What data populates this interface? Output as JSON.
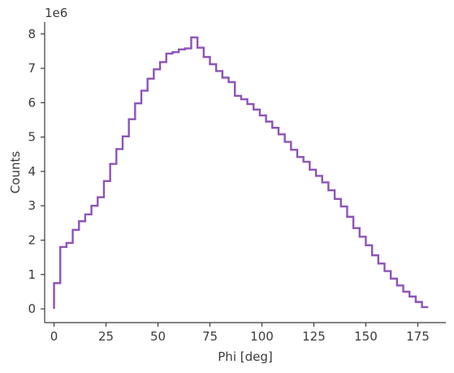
{
  "chart_data": {
    "type": "line",
    "style": "step-histogram",
    "title": "",
    "xlabel": "Phi [deg]",
    "ylabel": "Counts",
    "y_offset_label": "1e6",
    "xlim": [
      -4.5,
      188.5
    ],
    "ylim": [
      -0.4,
      8.35
    ],
    "xticks": [
      0,
      25,
      50,
      75,
      100,
      125,
      150,
      175
    ],
    "yticks": [
      0,
      1,
      2,
      3,
      4,
      5,
      6,
      7,
      8
    ],
    "y_scale": 1000000,
    "grid": false,
    "legend": "none",
    "line_color": "#8e52b8",
    "bin_width": 3,
    "x_edges_start": 0,
    "x_edges_end": 180,
    "values_millions": [
      0.75,
      1.8,
      1.92,
      2.3,
      2.55,
      2.75,
      3.0,
      3.25,
      3.72,
      4.22,
      4.65,
      5.02,
      5.52,
      5.98,
      6.35,
      6.7,
      6.97,
      7.18,
      7.43,
      7.47,
      7.55,
      7.58,
      7.9,
      7.6,
      7.33,
      7.12,
      6.92,
      6.73,
      6.6,
      6.2,
      6.1,
      5.96,
      5.8,
      5.63,
      5.45,
      5.27,
      5.08,
      4.86,
      4.63,
      4.42,
      4.28,
      4.05,
      3.87,
      3.68,
      3.45,
      3.2,
      2.98,
      2.68,
      2.35,
      2.1,
      1.85,
      1.56,
      1.32,
      1.1,
      0.88,
      0.68,
      0.5,
      0.36,
      0.2,
      0.05
    ]
  }
}
